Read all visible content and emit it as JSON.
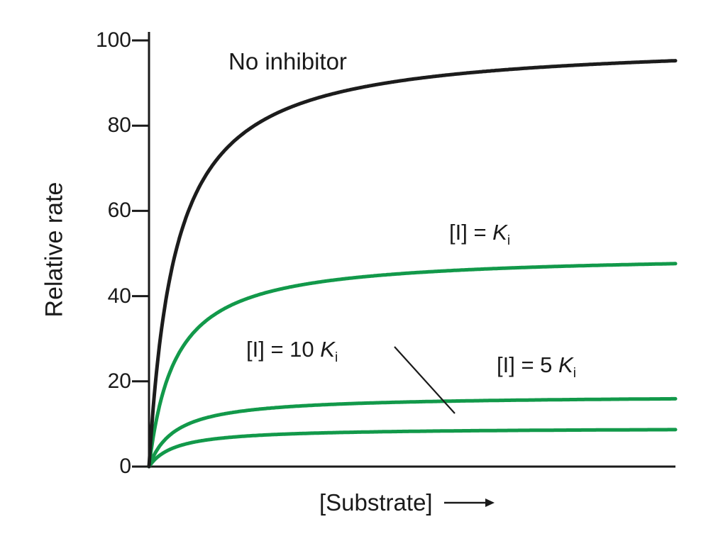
{
  "chart_data": {
    "type": "line",
    "title": "",
    "xlabel": "[Substrate]",
    "ylabel": "Relative rate",
    "ylim": [
      0,
      100
    ],
    "yticks": [
      "0",
      "20",
      "40",
      "60",
      "80",
      "100"
    ],
    "x_axis_note": "unlabeled substrate concentration axis, shown with right arrow, range approx 0 to 20 Km",
    "km_relative": 1,
    "grid": "off",
    "legend": "inline curve labels",
    "series": [
      {
        "name": "No inhibitor",
        "color": "#1c1c1c",
        "vmax": 100,
        "plateau_shown": 95
      },
      {
        "name": "[I] = Ki",
        "color": "#12994a",
        "vmax": 50,
        "plateau_shown": 48
      },
      {
        "name": "[I] = 5 Ki",
        "color": "#12994a",
        "vmax": 16.7,
        "plateau_shown": 16
      },
      {
        "name": "[I] = 10 Ki",
        "color": "#12994a",
        "vmax": 9.1,
        "plateau_shown": 9
      }
    ],
    "callout": {
      "type": "pointer-line",
      "from_label": "[I] = 10 Ki",
      "to_series": "[I] = 10 Ki"
    },
    "labels": {
      "no_inhibitor": "No inhibitor",
      "ki": {
        "prefix": "[I] = ",
        "symbol": "K",
        "sub": "i"
      },
      "ki10": {
        "prefix": "[I] = 10 ",
        "symbol": "K",
        "sub": "i"
      },
      "ki5": {
        "prefix": "[I] = 5 ",
        "symbol": "K",
        "sub": "i"
      }
    },
    "axis_color": "#1a1a1a"
  }
}
